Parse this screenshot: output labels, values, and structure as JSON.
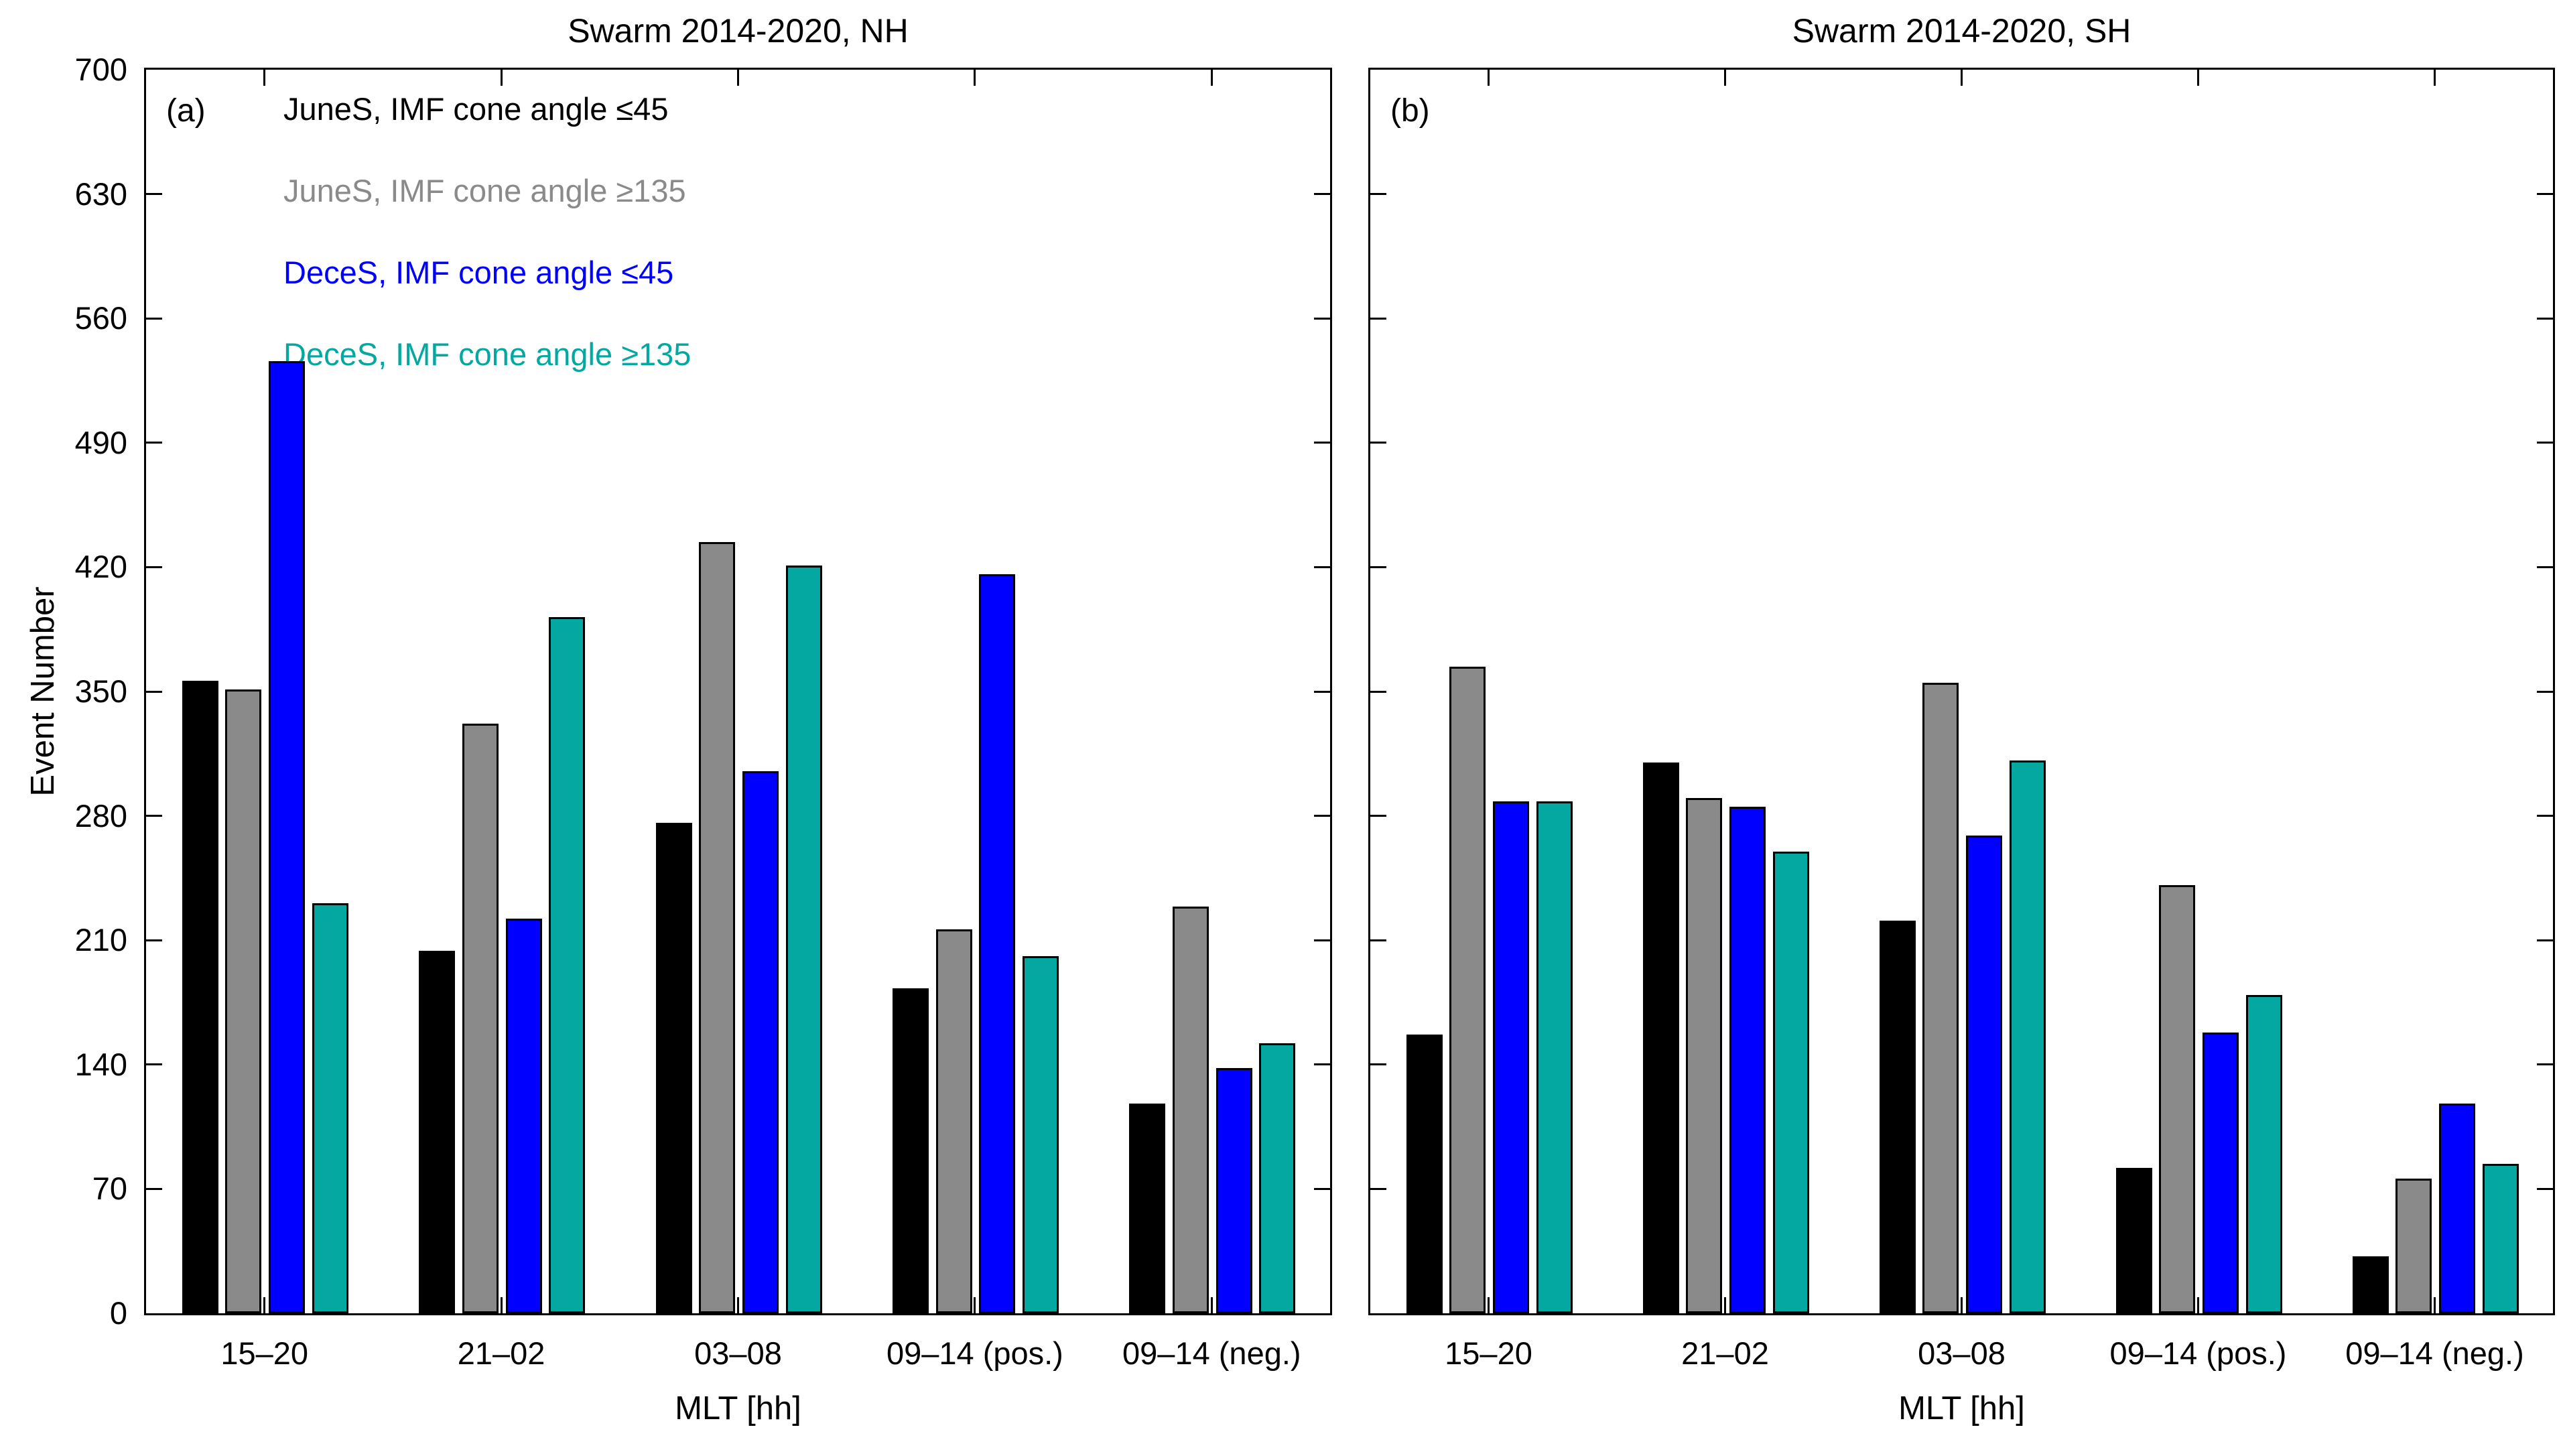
{
  "figure": {
    "ylabel": "Event Number",
    "xlabel": "MLT [hh]",
    "panel_a_label": "(a)",
    "panel_b_label": "(b)"
  },
  "chart_data": [
    {
      "type": "bar",
      "title": "Swarm 2014-2020, NH",
      "panel_label": "(a)",
      "xlabel": "MLT [hh]",
      "ylabel": "Event Number",
      "ylim": [
        0,
        700
      ],
      "yticks": [
        0,
        70,
        140,
        210,
        280,
        350,
        420,
        490,
        560,
        630,
        700
      ],
      "grid": false,
      "legend_position": "top-left",
      "categories": [
        "15–20",
        "21–02",
        "03–08",
        "09–14 (pos.)",
        "09–14 (neg.)"
      ],
      "series": [
        {
          "name": "JuneS, IMF cone angle ≤45",
          "color": "#000000",
          "values": [
            356,
            204,
            276,
            183,
            118
          ]
        },
        {
          "name": "JuneS, IMF cone angle ≥135",
          "color": "#8a8a8a",
          "values": [
            351,
            332,
            434,
            216,
            229
          ]
        },
        {
          "name": "DeceS, IMF cone angle ≤45",
          "color": "#0000ff",
          "values": [
            536,
            222,
            305,
            416,
            138
          ]
        },
        {
          "name": "DeceS, IMF cone angle ≥135",
          "color": "#04a8a0",
          "values": [
            231,
            392,
            421,
            201,
            152
          ]
        }
      ]
    },
    {
      "type": "bar",
      "title": "Swarm 2014-2020, SH",
      "panel_label": "(b)",
      "xlabel": "MLT [hh]",
      "ylabel": "Event Number",
      "ylim": [
        0,
        700
      ],
      "yticks": [
        0,
        70,
        140,
        210,
        280,
        350,
        420,
        490,
        560,
        630,
        700
      ],
      "grid": false,
      "legend_position": "none",
      "categories": [
        "15–20",
        "21–02",
        "03–08",
        "09–14 (pos.)",
        "09–14 (neg.)"
      ],
      "series": [
        {
          "name": "JuneS, IMF cone angle ≤45",
          "color": "#000000",
          "values": [
            157,
            310,
            221,
            82,
            32
          ]
        },
        {
          "name": "JuneS, IMF cone angle ≥135",
          "color": "#8a8a8a",
          "values": [
            364,
            290,
            355,
            241,
            76
          ]
        },
        {
          "name": "DeceS, IMF cone angle ≤45",
          "color": "#0000ff",
          "values": [
            288,
            285,
            269,
            158,
            118
          ]
        },
        {
          "name": "DeceS, IMF cone angle ≥135",
          "color": "#04a8a0",
          "values": [
            288,
            260,
            311,
            179,
            84
          ]
        }
      ]
    }
  ],
  "colors": {
    "bar_gray": "#737373",
    "bar_blue": "#0000ff",
    "bar_teal": "#04a8a0",
    "bar_black": "#000000",
    "axis": "#000000"
  }
}
